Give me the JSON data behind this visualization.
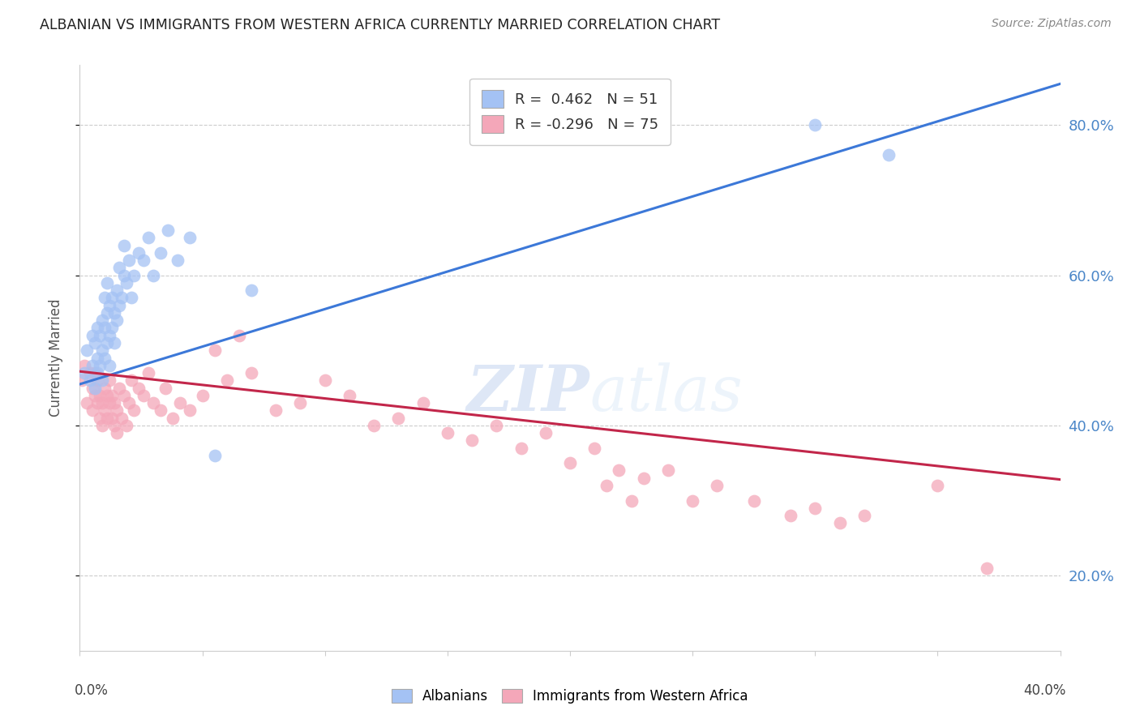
{
  "title": "ALBANIAN VS IMMIGRANTS FROM WESTERN AFRICA CURRENTLY MARRIED CORRELATION CHART",
  "source": "Source: ZipAtlas.com",
  "ylabel": "Currently Married",
  "right_yticks": [
    "20.0%",
    "40.0%",
    "60.0%",
    "80.0%"
  ],
  "legend_line1": "R =  0.462   N = 51",
  "legend_line2": "R = -0.296   N = 75",
  "blue_color": "#a4c2f4",
  "pink_color": "#f4a7b9",
  "blue_line_color": "#3c78d8",
  "pink_line_color": "#c2264a",
  "background_color": "#ffffff",
  "grid_color": "#cccccc",
  "watermark_zip": "ZIP",
  "watermark_atlas": "atlas",
  "xlim": [
    0.0,
    0.4
  ],
  "ylim": [
    0.1,
    0.88
  ],
  "blue_x": [
    0.002,
    0.003,
    0.004,
    0.005,
    0.005,
    0.006,
    0.006,
    0.007,
    0.007,
    0.007,
    0.008,
    0.008,
    0.009,
    0.009,
    0.009,
    0.01,
    0.01,
    0.01,
    0.011,
    0.011,
    0.011,
    0.012,
    0.012,
    0.012,
    0.013,
    0.013,
    0.014,
    0.014,
    0.015,
    0.015,
    0.016,
    0.016,
    0.017,
    0.018,
    0.018,
    0.019,
    0.02,
    0.021,
    0.022,
    0.024,
    0.026,
    0.028,
    0.03,
    0.033,
    0.036,
    0.04,
    0.045,
    0.055,
    0.07,
    0.3,
    0.33
  ],
  "blue_y": [
    0.47,
    0.5,
    0.46,
    0.48,
    0.52,
    0.45,
    0.51,
    0.47,
    0.49,
    0.53,
    0.48,
    0.52,
    0.5,
    0.54,
    0.46,
    0.49,
    0.53,
    0.57,
    0.51,
    0.55,
    0.59,
    0.48,
    0.52,
    0.56,
    0.53,
    0.57,
    0.51,
    0.55,
    0.54,
    0.58,
    0.56,
    0.61,
    0.57,
    0.6,
    0.64,
    0.59,
    0.62,
    0.57,
    0.6,
    0.63,
    0.62,
    0.65,
    0.6,
    0.63,
    0.66,
    0.62,
    0.65,
    0.36,
    0.58,
    0.8,
    0.76
  ],
  "pink_x": [
    0.001,
    0.002,
    0.003,
    0.004,
    0.005,
    0.005,
    0.006,
    0.006,
    0.007,
    0.007,
    0.008,
    0.008,
    0.009,
    0.009,
    0.01,
    0.01,
    0.011,
    0.011,
    0.012,
    0.012,
    0.013,
    0.013,
    0.014,
    0.014,
    0.015,
    0.015,
    0.016,
    0.017,
    0.018,
    0.019,
    0.02,
    0.021,
    0.022,
    0.024,
    0.026,
    0.028,
    0.03,
    0.033,
    0.035,
    0.038,
    0.041,
    0.045,
    0.05,
    0.055,
    0.06,
    0.065,
    0.07,
    0.08,
    0.09,
    0.1,
    0.11,
    0.12,
    0.13,
    0.14,
    0.15,
    0.16,
    0.17,
    0.18,
    0.19,
    0.2,
    0.21,
    0.215,
    0.22,
    0.225,
    0.23,
    0.24,
    0.25,
    0.26,
    0.275,
    0.29,
    0.3,
    0.31,
    0.32,
    0.35,
    0.37
  ],
  "pink_y": [
    0.46,
    0.48,
    0.43,
    0.47,
    0.42,
    0.45,
    0.44,
    0.47,
    0.43,
    0.46,
    0.41,
    0.44,
    0.4,
    0.43,
    0.42,
    0.45,
    0.41,
    0.44,
    0.43,
    0.46,
    0.41,
    0.44,
    0.4,
    0.43,
    0.39,
    0.42,
    0.45,
    0.41,
    0.44,
    0.4,
    0.43,
    0.46,
    0.42,
    0.45,
    0.44,
    0.47,
    0.43,
    0.42,
    0.45,
    0.41,
    0.43,
    0.42,
    0.44,
    0.5,
    0.46,
    0.52,
    0.47,
    0.42,
    0.43,
    0.46,
    0.44,
    0.4,
    0.41,
    0.43,
    0.39,
    0.38,
    0.4,
    0.37,
    0.39,
    0.35,
    0.37,
    0.32,
    0.34,
    0.3,
    0.33,
    0.34,
    0.3,
    0.32,
    0.3,
    0.28,
    0.29,
    0.27,
    0.28,
    0.32,
    0.21
  ]
}
